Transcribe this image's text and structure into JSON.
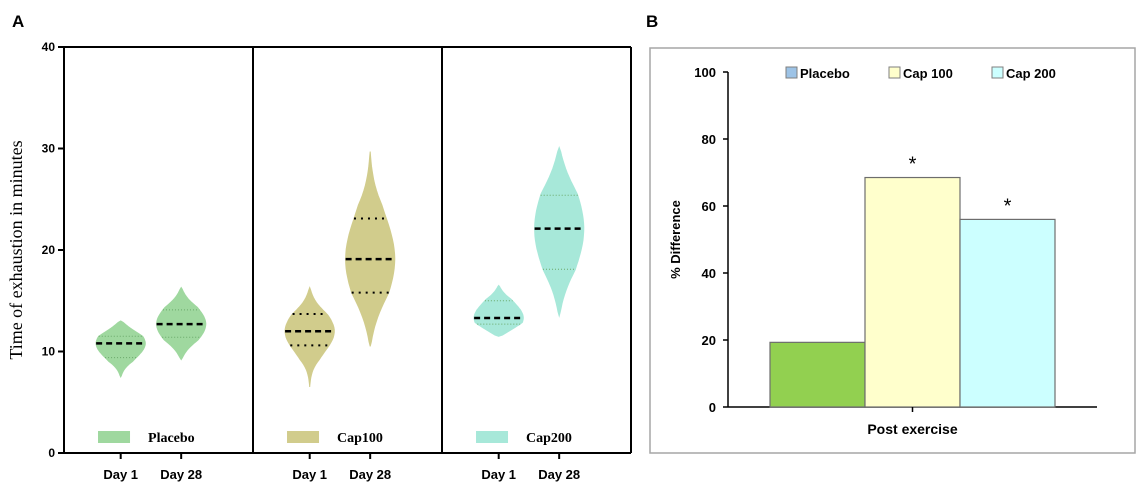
{
  "chart_data": [
    {
      "type": "violin",
      "panel_label": "A",
      "ylabel": "Time of exhaustion in minutes",
      "ylim": [
        0,
        40
      ],
      "yticks": [
        "0",
        "10",
        "20",
        "30",
        "40"
      ],
      "groups": [
        {
          "name": "Placebo",
          "color": "#9fd89f",
          "days": [
            {
              "label": "Day 1",
              "min": 7.5,
              "q1": 9.4,
              "median": 10.8,
              "q3": 11.5,
              "max": 13.0
            },
            {
              "label": "Day 28",
              "min": 9.2,
              "q1": 11.4,
              "median": 12.7,
              "q3": 14.1,
              "max": 16.3
            }
          ]
        },
        {
          "name": "Cap100",
          "color": "#d1cc8c",
          "days": [
            {
              "label": "Day 1",
              "min": 6.5,
              "q1": 10.6,
              "median": 12.0,
              "q3": 13.7,
              "max": 16.3
            },
            {
              "label": "Day 28",
              "min": 10.5,
              "q1": 15.8,
              "median": 19.1,
              "q3": 23.1,
              "max": 29.7
            }
          ]
        },
        {
          "name": "Cap200",
          "color": "#a7e8d9",
          "days": [
            {
              "label": "Day 1",
              "min": 11.5,
              "q1": 12.7,
              "median": 13.3,
              "q3": 15.0,
              "max": 16.5
            },
            {
              "label": "Day 28",
              "min": 13.5,
              "q1": 18.1,
              "median": 22.1,
              "q3": 25.4,
              "max": 30.1
            }
          ]
        }
      ]
    },
    {
      "type": "bar",
      "panel_label": "B",
      "xlabel": "Post exercise",
      "ylabel": "% Difference",
      "ylim": [
        0,
        100
      ],
      "yticks": [
        "0",
        "20",
        "40",
        "60",
        "80",
        "100"
      ],
      "series": [
        {
          "name": "Placebo",
          "legend_name": "Placebo",
          "value": 19.3,
          "color": "#92d050",
          "legend_color": "#9dc3e6",
          "annotation": ""
        },
        {
          "name": "Cap 100",
          "legend_name": "Cap 100",
          "value": 68.5,
          "color": "#ffffcc",
          "legend_color": "#ffffcc",
          "annotation": "*"
        },
        {
          "name": "Cap 200",
          "legend_name": "Cap 200",
          "value": 56.0,
          "color": "#ccffff",
          "legend_color": "#ccffff",
          "annotation": "*"
        }
      ]
    }
  ]
}
